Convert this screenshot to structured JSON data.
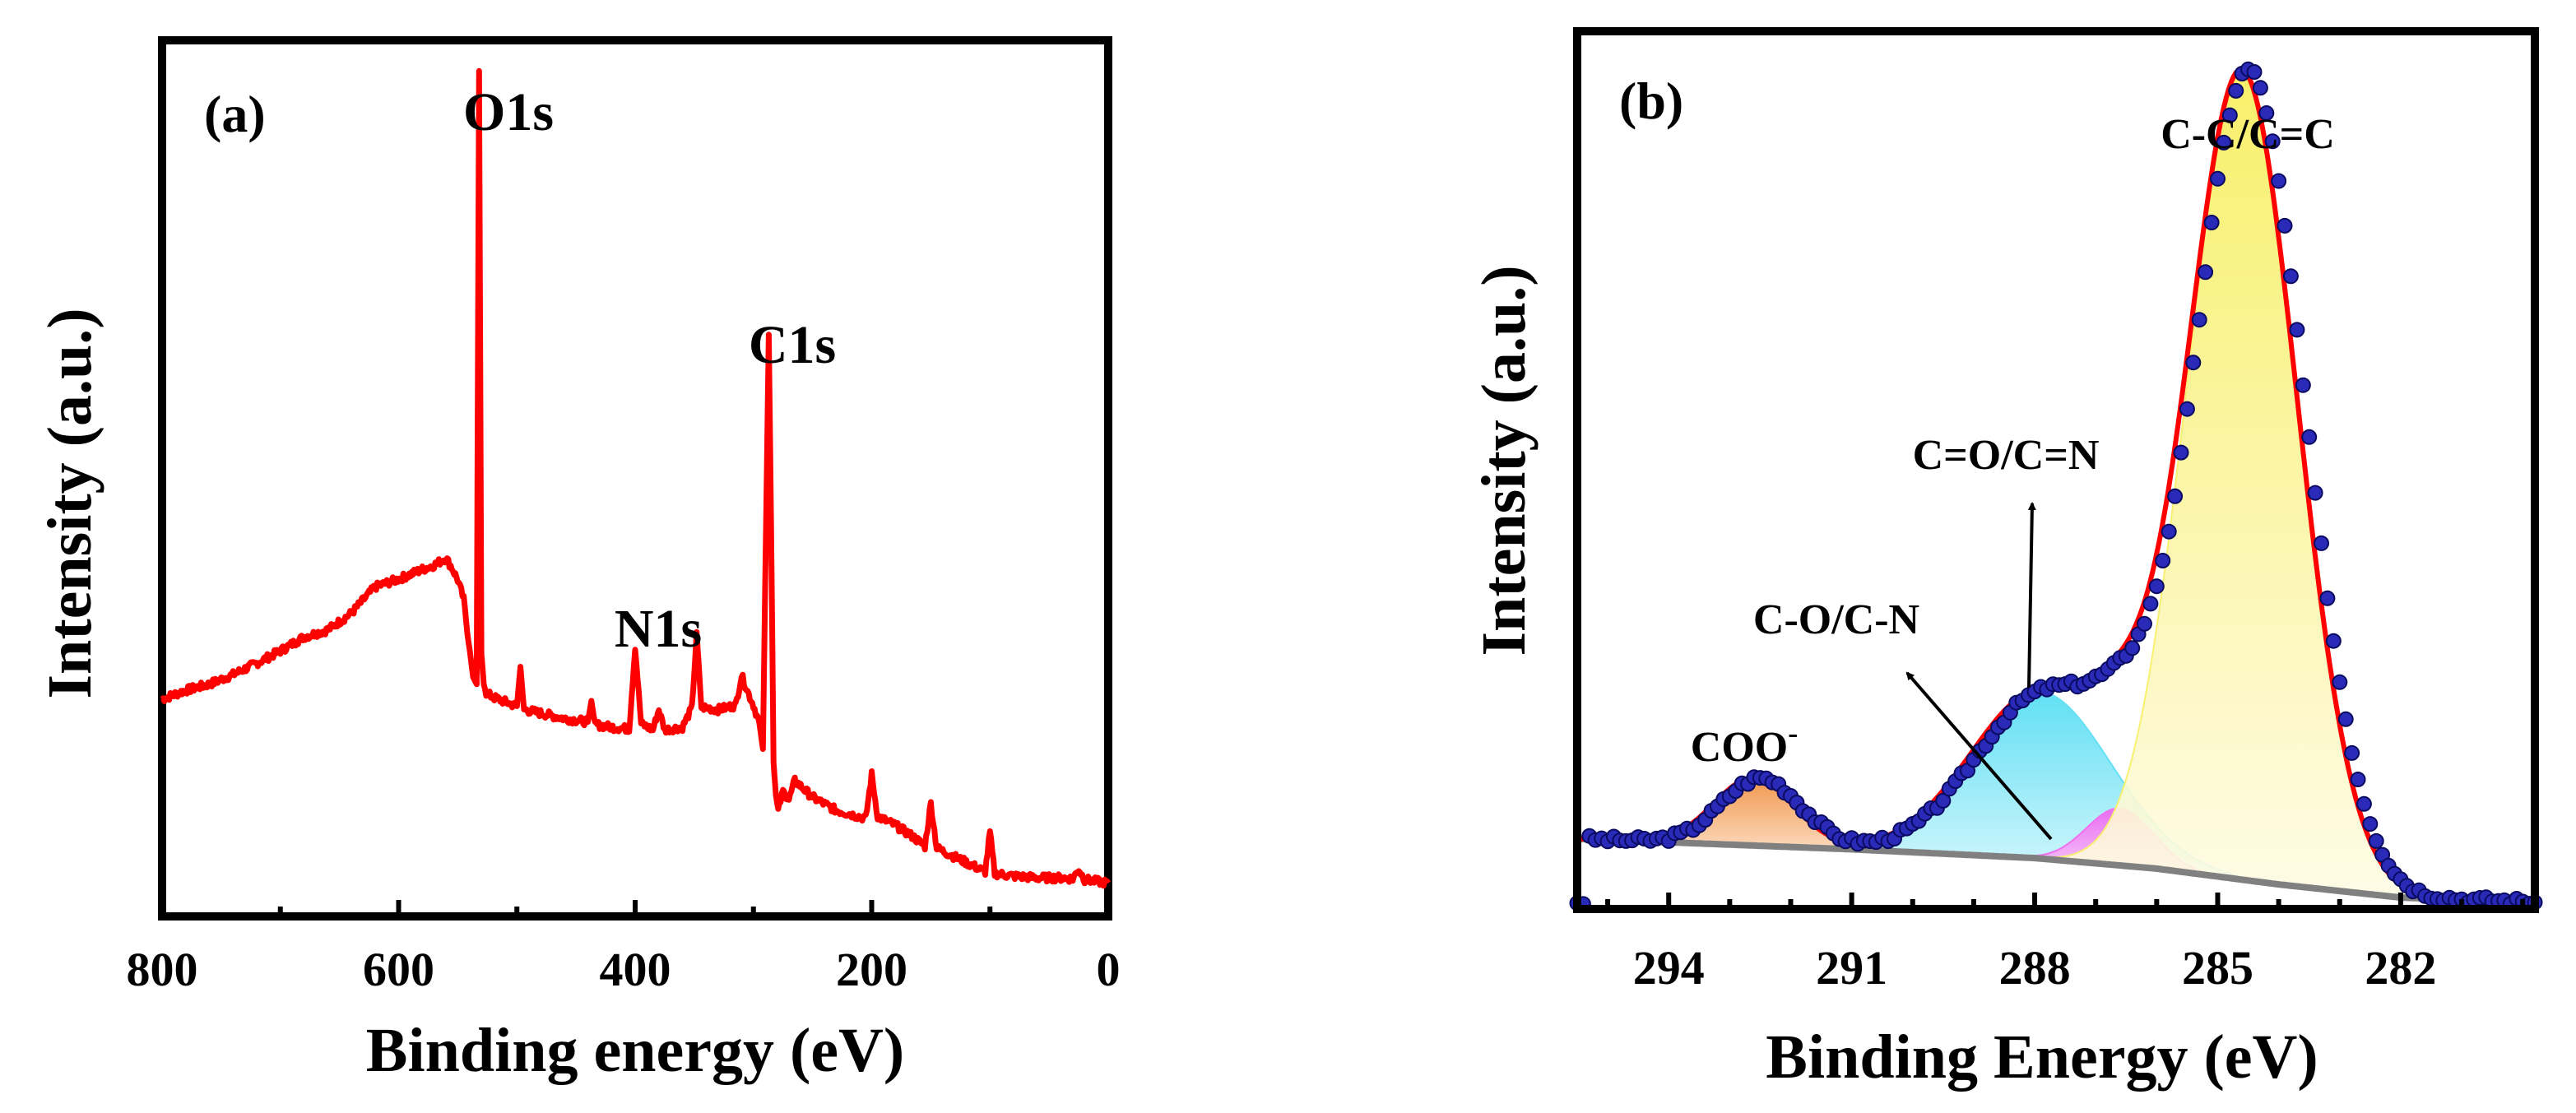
{
  "chart_data": [
    {
      "panel": "(a)",
      "type": "line",
      "title": "",
      "xlabel": "Binding energy (eV)",
      "ylabel": "Intensity (a.u.)",
      "xlim": [
        800,
        0
      ],
      "x_reversed": true,
      "ylim": [
        0,
        100
      ],
      "x_ticks": [
        800,
        600,
        400,
        200,
        0
      ],
      "x_tick_labels": [
        "800",
        "600",
        "400",
        "200",
        "0"
      ],
      "y_ticks_shown": false,
      "grid": false,
      "legend": "none",
      "series": [
        {
          "name": "survey spectrum",
          "color": "#ff0000",
          "x": [
            800,
            780,
            760,
            740,
            720,
            700,
            680,
            660,
            640,
            620,
            600,
            580,
            570,
            560,
            555,
            550,
            545,
            540,
            537,
            534,
            532,
            530,
            528,
            526,
            520,
            510,
            500,
            497,
            494,
            480,
            460,
            440,
            437,
            434,
            420,
            405,
            400,
            395,
            385,
            380,
            375,
            360,
            352,
            348,
            344,
            330,
            315,
            310,
            305,
            300,
            295,
            292,
            289,
            287,
            285,
            283,
            281,
            279,
            275,
            270,
            265,
            250,
            230,
            205,
            200,
            195,
            180,
            165,
            155,
            150,
            145,
            130,
            110,
            104,
            100,
            96,
            80,
            60,
            40,
            30,
            25,
            20,
            10,
            0
          ],
          "y": [
            24.8,
            25.8,
            26.5,
            27.6,
            28.9,
            30.3,
            31.9,
            32.7,
            34.6,
            37.6,
            38.5,
            39.6,
            40.1,
            40.9,
            39.8,
            38.4,
            36.2,
            30.5,
            27.3,
            26.5,
            96.5,
            30.0,
            26.5,
            25.5,
            25.0,
            24.5,
            24.0,
            28.5,
            23.6,
            23.2,
            22.6,
            22.2,
            24.6,
            21.9,
            21.6,
            21.4,
            30.8,
            22.0,
            21.3,
            23.6,
            21.3,
            21.6,
            23.8,
            32.1,
            23.9,
            23.6,
            24.1,
            27.5,
            25.7,
            24.1,
            22.1,
            19.1,
            47.8,
            66.4,
            43.8,
            17.6,
            13.8,
            12.1,
            14.3,
            13.3,
            15.5,
            13.6,
            12.1,
            11.2,
            16.2,
            11.4,
            10.4,
            9.1,
            8.0,
            12.9,
            7.8,
            6.8,
            5.5,
            5.1,
            9.6,
            4.9,
            4.6,
            4.4,
            4.4,
            4.3,
            5.4,
            4.2,
            4.0,
            3.8
          ]
        }
      ],
      "annotations": [
        {
          "text": "O1s",
          "x": 530
        },
        {
          "text": "N1s",
          "x": 400
        },
        {
          "text": "C1s",
          "x": 285
        }
      ]
    },
    {
      "panel": "(b)",
      "type": "line",
      "title": "",
      "xlabel": "Binding Energy (eV)",
      "ylabel": "Intensity (a.u.)",
      "xlim": [
        295.5,
        279.8
      ],
      "x_reversed": true,
      "ylim": [
        0,
        100
      ],
      "x_ticks": [
        294,
        291,
        288,
        285,
        282
      ],
      "x_tick_labels": [
        "294",
        "291",
        "288",
        "285",
        "282"
      ],
      "y_ticks_shown": false,
      "grid": false,
      "legend": "none",
      "baseline": {
        "color": "#808080",
        "x": [
          295.5,
          291,
          288,
          286,
          284,
          282,
          279.8
        ],
        "y": [
          8,
          6.8,
          5.8,
          4.6,
          2.8,
          1.3,
          0.8
        ]
      },
      "components": [
        {
          "name": "COO-",
          "label": "COO",
          "superscript": "-",
          "center": 292.6,
          "height": 7.7,
          "width": 0.65,
          "fill": "#f08c3a"
        },
        {
          "name": "C-O/C-N",
          "label": "C-O/C-N",
          "center": 287.9,
          "height": 19,
          "width": 1.15,
          "fill": "#66e0f5"
        },
        {
          "name": "C=O/C=N",
          "label": "C=O/C=N",
          "center": 286.6,
          "height": 6.5,
          "width": 0.55,
          "fill": "#f070f0"
        },
        {
          "name": "C-C/C=C",
          "label": "C-C/C=C",
          "center": 284.6,
          "height": 92,
          "width": 0.9,
          "fill": "#f8f070"
        }
      ],
      "series": [
        {
          "name": "envelope fit",
          "color": "#ff0000",
          "type": "line"
        },
        {
          "name": "raw data",
          "color": "#1a1aa0",
          "type": "scatter",
          "x_start": 295.5,
          "x_end": 279.8,
          "x_step": 0.1
        }
      ],
      "annotations": [
        {
          "text": "C-C/C=C",
          "x": 284.6
        },
        {
          "text": "C=O/C=N",
          "x": 287.9,
          "arrow": true
        },
        {
          "text": "C-O/C-N",
          "x": 289.2,
          "arrow": true
        }
      ]
    }
  ]
}
